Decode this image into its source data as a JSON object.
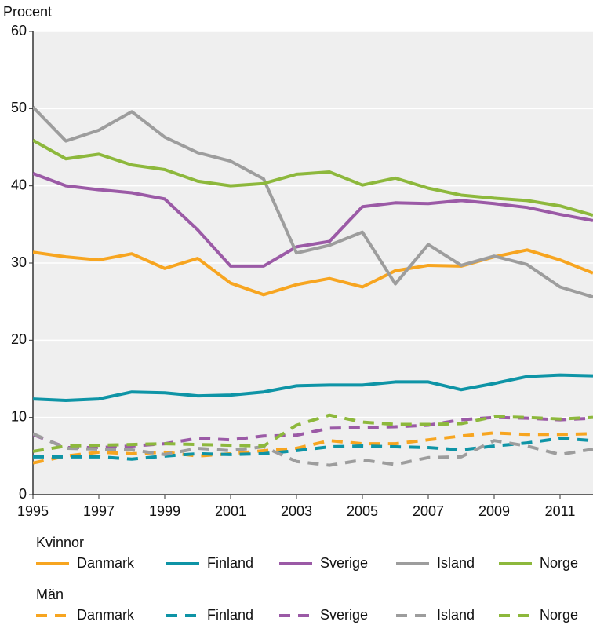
{
  "chart_data": {
    "type": "line",
    "y_label": "Procent",
    "x": [
      1995,
      1996,
      1997,
      1998,
      1999,
      2000,
      2001,
      2002,
      2003,
      2004,
      2005,
      2006,
      2007,
      2008,
      2009,
      2010,
      2011,
      2012
    ],
    "xlim": [
      1995,
      2012
    ],
    "xticks": [
      1995,
      1997,
      1999,
      2001,
      2003,
      2005,
      2007,
      2009,
      2011
    ],
    "ylim": [
      0,
      60
    ],
    "yticks": [
      0,
      10,
      20,
      30,
      40,
      50,
      60
    ],
    "grid": true,
    "background": "#efefef",
    "groups": [
      {
        "title": "Kvinnor",
        "style": "solid",
        "series": [
          {
            "name": "Danmark",
            "color": "#f7a520",
            "values": [
              31.4,
              30.8,
              30.4,
              31.2,
              29.3,
              30.6,
              27.4,
              25.9,
              27.2,
              28.0,
              26.9,
              29.0,
              29.7,
              29.6,
              30.8,
              31.7,
              30.4,
              28.7
            ]
          },
          {
            "name": "Finland",
            "color": "#0e94a6",
            "values": [
              12.4,
              12.2,
              12.4,
              13.3,
              13.2,
              12.8,
              12.9,
              13.3,
              14.1,
              14.2,
              14.2,
              14.6,
              14.6,
              13.6,
              14.4,
              15.3,
              15.5,
              15.4
            ]
          },
          {
            "name": "Sverige",
            "color": "#9b5aa6",
            "values": [
              41.6,
              40.0,
              39.5,
              39.1,
              38.3,
              34.3,
              29.6,
              29.6,
              32.1,
              32.8,
              37.3,
              37.8,
              37.7,
              38.1,
              37.7,
              37.2,
              36.3,
              35.5
            ]
          },
          {
            "name": "Island",
            "color": "#9d9d9d",
            "values": [
              50.2,
              45.8,
              47.2,
              49.6,
              46.3,
              44.3,
              43.2,
              40.9,
              31.3,
              32.3,
              34.0,
              27.3,
              32.4,
              29.7,
              30.9,
              29.8,
              26.9,
              25.6
            ]
          },
          {
            "name": "Norge",
            "color": "#8db83c",
            "values": [
              45.9,
              43.5,
              44.1,
              42.7,
              42.1,
              40.6,
              40.0,
              40.3,
              41.5,
              41.8,
              40.1,
              41.0,
              39.7,
              38.8,
              38.4,
              38.1,
              37.4,
              36.2
            ]
          }
        ]
      },
      {
        "title": "Män",
        "style": "dashed",
        "series": [
          {
            "name": "Danmark",
            "color": "#f7a520",
            "values": [
              4.1,
              5.0,
              5.5,
              5.3,
              5.5,
              5.0,
              5.3,
              5.7,
              6.0,
              7.0,
              6.6,
              6.6,
              7.1,
              7.6,
              8.0,
              7.8,
              7.8,
              7.9
            ]
          },
          {
            "name": "Finland",
            "color": "#0e94a6",
            "values": [
              4.9,
              4.9,
              4.9,
              4.6,
              5.0,
              5.3,
              5.2,
              5.3,
              5.7,
              6.2,
              6.3,
              6.2,
              6.1,
              5.8,
              6.3,
              6.7,
              7.3,
              7.0
            ]
          },
          {
            "name": "Sverige",
            "color": "#9b5aa6",
            "values": [
              7.8,
              6.1,
              6.1,
              6.3,
              6.6,
              7.3,
              7.1,
              7.6,
              7.7,
              8.6,
              8.7,
              8.8,
              9.0,
              9.7,
              10.0,
              9.9,
              9.7,
              9.9
            ]
          },
          {
            "name": "Island",
            "color": "#9d9d9d",
            "values": [
              7.9,
              6.0,
              5.9,
              5.8,
              5.2,
              6.0,
              5.7,
              6.2,
              4.3,
              3.8,
              4.5,
              3.9,
              4.8,
              4.9,
              7.0,
              6.3,
              5.2,
              5.9
            ]
          },
          {
            "name": "Norge",
            "color": "#8db83c",
            "values": [
              5.6,
              6.3,
              6.4,
              6.5,
              6.6,
              6.5,
              6.4,
              6.3,
              9.0,
              10.3,
              9.4,
              9.1,
              9.1,
              9.2,
              10.1,
              10.0,
              9.8,
              10.0
            ]
          }
        ]
      }
    ]
  }
}
